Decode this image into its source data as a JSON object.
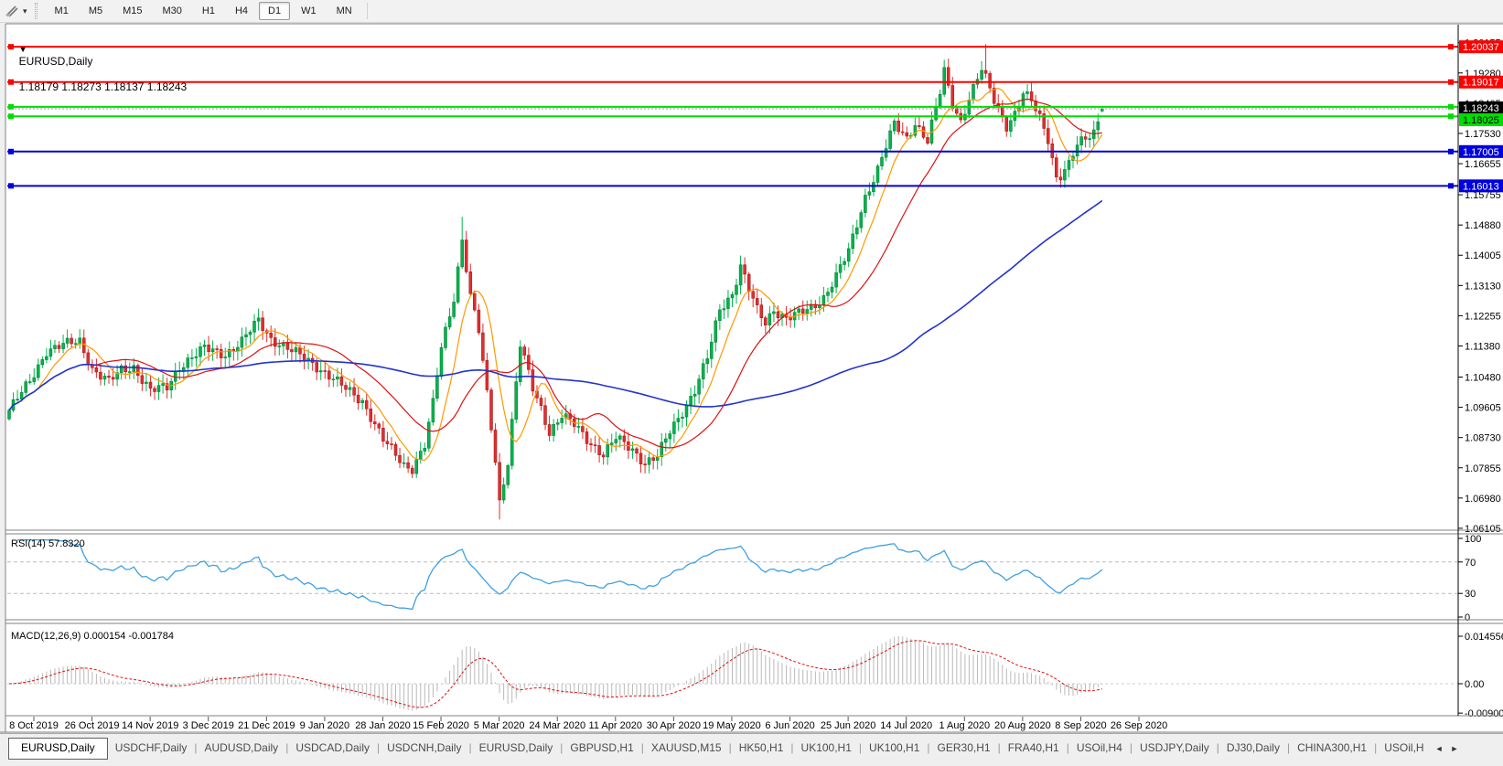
{
  "toolbar": {
    "drawing_icon": "crosshair-draw-tool",
    "dropdown_icon": "▾",
    "timeframes": [
      "M1",
      "M5",
      "M15",
      "M30",
      "H1",
      "H4",
      "D1",
      "W1",
      "MN"
    ],
    "active_timeframe": "D1"
  },
  "chart_title": {
    "collapse_icon": "▼",
    "symbol_label": "EURUSD,Daily",
    "ohlc_text": "1.18179 1.18273 1.18137 1.18243"
  },
  "chart_data": {
    "type": "candlestick",
    "symbol": "EURUSD",
    "timeframe": "Daily",
    "price_axis_ticks": [
      "1.20155",
      "1.19280",
      "1.18405",
      "1.17530",
      "1.16655",
      "1.15755",
      "1.14880",
      "1.14005",
      "1.13130",
      "1.12255",
      "1.11380",
      "1.10480",
      "1.09605",
      "1.08730",
      "1.07855",
      "1.06980",
      "1.06105"
    ],
    "date_labels": [
      "8 Oct 2019",
      "26 Oct 2019",
      "14 Nov 2019",
      "3 Dec 2019",
      "21 Dec 2019",
      "9 Jan 2020",
      "28 Jan 2020",
      "15 Feb 2020",
      "5 Mar 2020",
      "24 Mar 2020",
      "11 Apr 2020",
      "30 Apr 2020",
      "19 May 2020",
      "6 Jun 2020",
      "25 Jun 2020",
      "14 Jul 2020",
      "1 Aug 2020",
      "20 Aug 2020",
      "8 Sep 2020",
      "26 Sep 2020"
    ],
    "price_range": {
      "top_value": 1.2065,
      "bottom_value": 1.0605
    },
    "candlestick": {
      "count": 264,
      "up_color": "#00B44C",
      "down_color": "#E02E2E",
      "last_candle": {
        "open": 1.18179,
        "high": 1.18273,
        "low": 1.18137,
        "close": 1.18243
      },
      "extremes": [
        [
          109,
          "high",
          1.1512
        ],
        [
          118,
          "low",
          1.0636
        ],
        [
          225,
          "high",
          1.1966
        ],
        [
          235,
          "high",
          1.2011
        ],
        [
          252,
          "low",
          1.1612
        ]
      ],
      "anchor_closes": [
        [
          0,
          1.0952
        ],
        [
          2,
          1.0985
        ],
        [
          5,
          1.1035
        ],
        [
          9,
          1.1125
        ],
        [
          13,
          1.114
        ],
        [
          17,
          1.1152
        ],
        [
          20,
          1.1073
        ],
        [
          24,
          1.1033
        ],
        [
          27,
          1.1068
        ],
        [
          30,
          1.1078
        ],
        [
          34,
          1.1008
        ],
        [
          38,
          1.1018
        ],
        [
          41,
          1.108
        ],
        [
          44,
          1.1105
        ],
        [
          47,
          1.113
        ],
        [
          52,
          1.1115
        ],
        [
          56,
          1.115
        ],
        [
          60,
          1.1212
        ],
        [
          63,
          1.116
        ],
        [
          68,
          1.1122
        ],
        [
          73,
          1.109
        ],
        [
          80,
          1.1022
        ],
        [
          85,
          1.098
        ],
        [
          90,
          1.0865
        ],
        [
          95,
          1.0795
        ],
        [
          97,
          1.0786
        ],
        [
          100,
          1.085
        ],
        [
          102,
          1.097
        ],
        [
          104,
          1.1134
        ],
        [
          107,
          1.128
        ],
        [
          109,
          1.1448
        ],
        [
          111,
          1.128
        ],
        [
          113,
          1.118
        ],
        [
          115,
          1.0998
        ],
        [
          117,
          1.081
        ],
        [
          118,
          1.0688
        ],
        [
          120,
          1.0805
        ],
        [
          122,
          1.103
        ],
        [
          123,
          1.114
        ],
        [
          126,
          1.1015
        ],
        [
          128,
          1.096
        ],
        [
          130,
          1.089
        ],
        [
          133,
          1.0935
        ],
        [
          136,
          1.091
        ],
        [
          139,
          1.087
        ],
        [
          143,
          1.0823
        ],
        [
          146,
          1.087
        ],
        [
          150,
          1.084
        ],
        [
          153,
          1.08
        ],
        [
          156,
          1.0817
        ],
        [
          159,
          1.089
        ],
        [
          162,
          1.095
        ],
        [
          165,
          1.101
        ],
        [
          168,
          1.1101
        ],
        [
          171,
          1.1245
        ],
        [
          174,
          1.129
        ],
        [
          176,
          1.137
        ],
        [
          178,
          1.13
        ],
        [
          180,
          1.124
        ],
        [
          182,
          1.1205
        ],
        [
          184,
          1.1245
        ],
        [
          187,
          1.1218
        ],
        [
          190,
          1.123
        ],
        [
          193,
          1.1248
        ],
        [
          196,
          1.128
        ],
        [
          199,
          1.134
        ],
        [
          202,
          1.141
        ],
        [
          206,
          1.157
        ],
        [
          209,
          1.165
        ],
        [
          213,
          1.1778
        ],
        [
          216,
          1.174
        ],
        [
          218,
          1.1785
        ],
        [
          221,
          1.173
        ],
        [
          224,
          1.187
        ],
        [
          225,
          1.1933
        ],
        [
          227,
          1.184
        ],
        [
          229,
          1.179
        ],
        [
          231,
          1.1855
        ],
        [
          234,
          1.1936
        ],
        [
          235,
          1.191
        ],
        [
          237,
          1.185
        ],
        [
          240,
          1.1777
        ],
        [
          242,
          1.181
        ],
        [
          244,
          1.1866
        ],
        [
          246,
          1.1845
        ],
        [
          248,
          1.18
        ],
        [
          250,
          1.174
        ],
        [
          252,
          1.1626
        ],
        [
          253,
          1.1631
        ],
        [
          255,
          1.166
        ],
        [
          257,
          1.1717
        ],
        [
          259,
          1.174
        ],
        [
          261,
          1.176
        ],
        [
          263,
          1.18243
        ]
      ]
    },
    "moving_averages": [
      {
        "period": 8,
        "color": "#FF9900"
      },
      {
        "period": 22,
        "color": "#DD1111"
      },
      {
        "period": 100,
        "color": "#2233CC"
      }
    ],
    "horizontal_lines": [
      {
        "price": 1.20037,
        "color": "#FF0000",
        "badge": "1.20037",
        "badge_text_color": "#FFFFFF"
      },
      {
        "price": 1.19017,
        "color": "#FF0000",
        "badge": "1.19017",
        "badge_text_color": "#FFFFFF"
      },
      {
        "price": 1.183,
        "color": "#00DD00",
        "badge": null,
        "badge_text_color": "#000000"
      },
      {
        "price": 1.18025,
        "color": "#00DD00",
        "badge": "1.18025",
        "badge_text_color": "#000000"
      },
      {
        "price": 1.17005,
        "color": "#0000DD",
        "badge": "1.17005",
        "badge_text_color": "#FFFFFF"
      },
      {
        "price": 1.16013,
        "color": "#0000DD",
        "badge": "1.16013",
        "badge_text_color": "#FFFFFF"
      }
    ],
    "bid": {
      "price": 1.18243,
      "badge": "1.18243",
      "line_color": "#999999",
      "badge_bg": "#000000",
      "badge_text_color": "#FFFFFF"
    },
    "rsi": {
      "label": "RSI(14) 57.8320",
      "period": 14,
      "current": 57.832,
      "levels": [
        70,
        30
      ],
      "axis_ticks": [
        "100",
        "70",
        "30",
        "0"
      ],
      "color": "#3FA0E0"
    },
    "macd": {
      "label": "MACD(12,26,9) 0.000154 -0.001784",
      "fast": 12,
      "slow": 26,
      "signal": 9,
      "current_macd": 0.000154,
      "current_signal": -0.001784,
      "axis_ticks": [
        "0.014556",
        "0.00",
        "-0.009001"
      ],
      "histogram_color": "#B9B9B9",
      "signal_color": "#DD1111"
    }
  },
  "tabs": {
    "items": [
      "EURUSD,Daily",
      "USDCHF,Daily",
      "AUDUSD,Daily",
      "USDCAD,Daily",
      "USDCNH,Daily",
      "EURUSD,Daily",
      "GBPUSD,H1",
      "XAUUSD,M15",
      "HK50,H1",
      "UK100,H1",
      "UK100,H1",
      "GER30,H1",
      "FRA40,H1",
      "USOil,H4",
      "USDJPY,Daily",
      "DJ30,Daily",
      "CHINA300,H1",
      "USOil,H"
    ],
    "active_index": 0,
    "scroll_left_icon": "◄",
    "scroll_right_icon": "►"
  }
}
